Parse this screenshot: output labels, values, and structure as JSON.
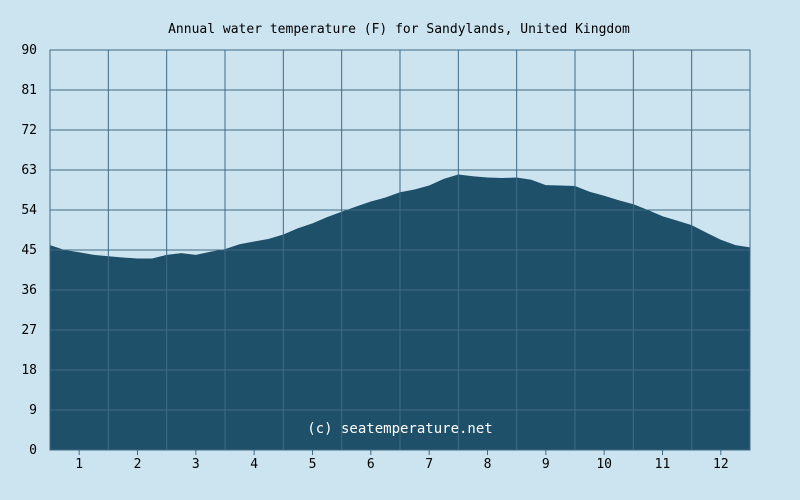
{
  "chart_data": {
    "type": "area",
    "title": "Annual water temperature (F) for Sandylands, United Kingdom",
    "xlabel": "",
    "ylabel": "",
    "x_ticks": [
      "1",
      "2",
      "3",
      "4",
      "5",
      "6",
      "7",
      "8",
      "9",
      "10",
      "11",
      "12"
    ],
    "y_ticks": [
      "0",
      "9",
      "18",
      "27",
      "36",
      "45",
      "54",
      "63",
      "72",
      "81",
      "90"
    ],
    "xlim": [
      0.5,
      12.5
    ],
    "ylim": [
      0,
      90
    ],
    "grid": true,
    "legend": "none",
    "watermark": "(c) seatemperature.net",
    "colors": {
      "background": "#cce3f0",
      "fill": "#1f5069",
      "grid": "#3f6a85",
      "plot_border": "#3f6a85"
    },
    "series": [
      {
        "x": [
          0.5,
          0.75,
          1.0,
          1.25,
          1.5,
          1.75,
          2.0,
          2.25,
          2.5,
          2.75,
          3.0,
          3.25,
          3.5,
          3.75,
          4.0,
          4.25,
          4.5,
          4.75,
          5.0,
          5.25,
          5.5,
          5.75,
          6.0,
          6.25,
          6.5,
          6.75,
          7.0,
          7.25,
          7.5,
          7.75,
          8.0,
          8.25,
          8.5,
          8.75,
          9.0,
          9.25,
          9.5,
          9.75,
          10.0,
          10.25,
          10.5,
          10.75,
          11.0,
          11.25,
          11.5,
          11.75,
          12.0,
          12.25,
          12.5
        ],
        "values": [
          46.1,
          45.0,
          44.5,
          43.9,
          43.6,
          43.3,
          43.1,
          43.1,
          43.9,
          44.3,
          43.9,
          44.6,
          45.2,
          46.3,
          46.9,
          47.5,
          48.5,
          49.9,
          51.0,
          52.4,
          53.6,
          54.8,
          55.9,
          56.8,
          58.0,
          58.6,
          59.5,
          61.0,
          62.0,
          61.6,
          61.3,
          61.2,
          61.3,
          60.8,
          59.6,
          59.5,
          59.4,
          58.1,
          57.2,
          56.2,
          55.3,
          54.0,
          52.6,
          51.6,
          50.6,
          48.9,
          47.3,
          46.1,
          45.6
        ]
      }
    ]
  }
}
